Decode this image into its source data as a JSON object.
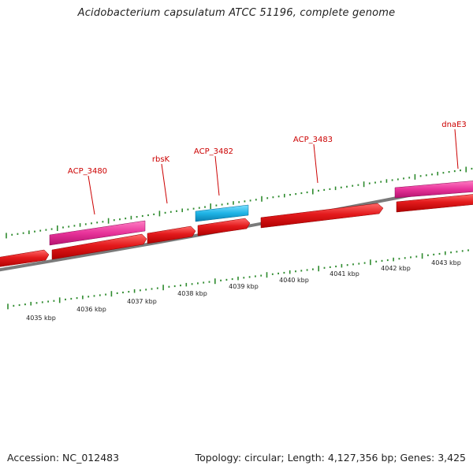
{
  "title": "Acidobacterium capsulatum ATCC 51196, complete genome",
  "footer": {
    "accession": "Accession: NC_012483",
    "summary": "Topology: circular; Length: 4,127,356 bp; Genes: 3,425"
  },
  "colors": {
    "cds": "#e31a1c",
    "cds_dark": "#a00000",
    "pseudo": "#e8339a",
    "rna": "#1fb4e6",
    "backbone": "#7a7a7a",
    "ticks": "#2e8b2e",
    "label": "#cc0000"
  },
  "gene_labels": [
    {
      "id": "g1",
      "text": "ACP_3480"
    },
    {
      "id": "g2",
      "text": "rbsK"
    },
    {
      "id": "g3",
      "text": "ACP_3482"
    },
    {
      "id": "g4",
      "text": "ACP_3483"
    },
    {
      "id": "g5",
      "text": "dnaE3"
    }
  ],
  "kbp_labels": [
    {
      "id": "k4035",
      "text": "4035 kbp"
    },
    {
      "id": "k4036",
      "text": "4036 kbp"
    },
    {
      "id": "k4037",
      "text": "4037 kbp"
    },
    {
      "id": "k4038",
      "text": "4038 kbp"
    },
    {
      "id": "k4039",
      "text": "4039 kbp"
    },
    {
      "id": "k4040",
      "text": "4040 kbp"
    },
    {
      "id": "k4041",
      "text": "4041 kbp"
    },
    {
      "id": "k4042",
      "text": "4042 kbp"
    },
    {
      "id": "k4043",
      "text": "4043 kbp"
    }
  ]
}
